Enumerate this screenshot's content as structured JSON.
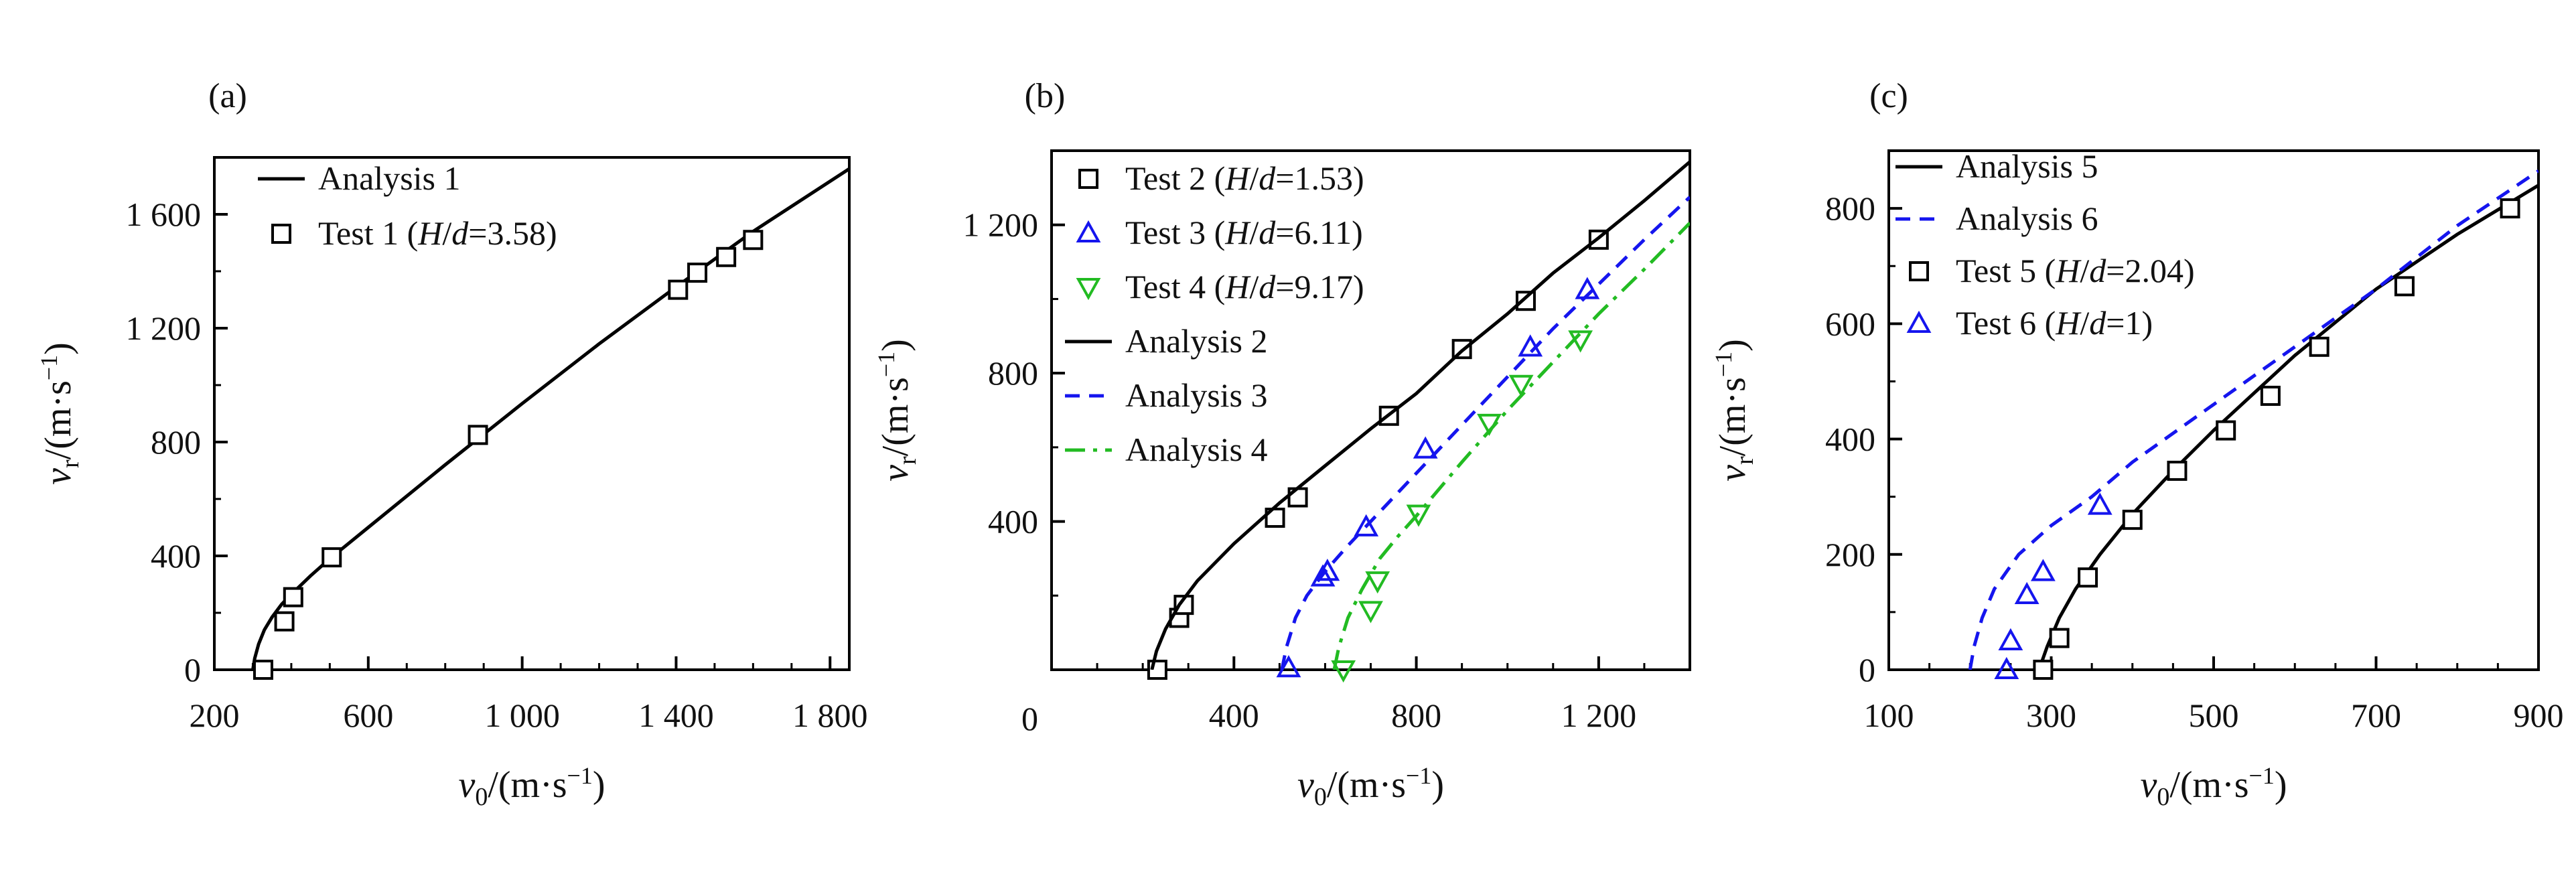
{
  "chart_data": [
    {
      "panel_label": "(a)",
      "type": "line",
      "xlabel": "v0/(m·s⁻¹)",
      "ylabel": "vr/(m·s⁻¹)",
      "xlim": [
        200,
        1850
      ],
      "ylim": [
        0,
        1800
      ],
      "xticks": [
        200,
        600,
        1000,
        1400,
        1800
      ],
      "xtick_labels": [
        "200",
        "600",
        "1 000",
        "1 400",
        "1 800"
      ],
      "yticks": [
        0,
        400,
        800,
        1200,
        1600
      ],
      "ytick_labels": [
        "0",
        "400",
        "800",
        "1 200",
        "1 600"
      ],
      "legend_position": "top-left",
      "series": [
        {
          "name": "Analysis 1",
          "kind": "curve",
          "color": "#000000",
          "dash": "solid",
          "x": [
            300,
            305,
            315,
            330,
            350,
            375,
            400,
            450,
            500,
            600,
            800,
            1000,
            1200,
            1400,
            1600,
            1850
          ],
          "y": [
            0,
            40,
            90,
            140,
            185,
            230,
            265,
            330,
            390,
            500,
            720,
            935,
            1145,
            1345,
            1540,
            1760
          ]
        },
        {
          "name": "Test 1 (H/d=3.58)",
          "legend_parts": [
            "Test 1 (",
            "H",
            "/",
            "d",
            "=3.58)"
          ],
          "kind": "markers",
          "marker": "square",
          "color": "#000000",
          "x": [
            327,
            382,
            405,
            505,
            885,
            1405,
            1455,
            1530,
            1600
          ],
          "y": [
            0,
            170,
            255,
            395,
            825,
            1335,
            1395,
            1450,
            1510
          ]
        }
      ]
    },
    {
      "panel_label": "(b)",
      "type": "line",
      "xlabel": "v0/(m·s⁻¹)",
      "ylabel": "vr/(m·s⁻¹)",
      "xlim": [
        0,
        1400
      ],
      "ylim": [
        0,
        1400
      ],
      "xticks": [
        400,
        800,
        1200
      ],
      "xtick_labels": [
        "400",
        "800",
        "1 200"
      ],
      "yticks": [
        400,
        800,
        1200
      ],
      "ytick_labels": [
        "400",
        "800",
        "1 200"
      ],
      "origin_label": "0",
      "legend_position": "top-left",
      "series": [
        {
          "name": "Test 2 (H/d=1.53)",
          "legend_parts": [
            "Test 2 (",
            "H",
            "/",
            "d",
            "=1.53)"
          ],
          "kind": "markers",
          "marker": "square",
          "color": "#000000",
          "x": [
            232,
            280,
            290,
            490,
            540,
            740,
            900,
            1040,
            1200
          ],
          "y": [
            0,
            140,
            175,
            410,
            465,
            685,
            865,
            995,
            1160
          ]
        },
        {
          "name": "Test 3 (H/d=6.11)",
          "legend_parts": [
            "Test 3 (",
            "H",
            "/",
            "d",
            "=6.11)"
          ],
          "kind": "markers",
          "marker": "triangle-up",
          "color": "#1515ee",
          "x": [
            520,
            595,
            605,
            690,
            820,
            1050,
            1175
          ],
          "y": [
            5,
            250,
            265,
            385,
            595,
            870,
            1025
          ]
        },
        {
          "name": "Test 4 (H/d=9.17)",
          "legend_parts": [
            "Test 4 (",
            "H",
            "/",
            "d",
            "=9.17)"
          ],
          "kind": "markers",
          "marker": "triangle-down",
          "color": "#22bb22",
          "x": [
            640,
            700,
            715,
            805,
            960,
            1030,
            1160
          ],
          "y": [
            0,
            160,
            240,
            420,
            665,
            770,
            890
          ]
        },
        {
          "name": "Analysis 2",
          "kind": "curve",
          "color": "#000000",
          "dash": "solid",
          "x": [
            220,
            230,
            250,
            280,
            320,
            400,
            500,
            600,
            700,
            800,
            900,
            1000,
            1100,
            1200,
            1300,
            1400
          ],
          "y": [
            0,
            50,
            110,
            175,
            240,
            340,
            450,
            550,
            650,
            745,
            860,
            960,
            1070,
            1165,
            1265,
            1370
          ]
        },
        {
          "name": "Analysis 3",
          "kind": "curve",
          "color": "#1515ee",
          "dash": "dashed",
          "x": [
            505,
            515,
            535,
            560,
            600,
            650,
            700,
            800,
            900,
            1000,
            1100,
            1200,
            1300,
            1400
          ],
          "y": [
            0,
            60,
            140,
            200,
            265,
            335,
            400,
            530,
            660,
            790,
            920,
            1040,
            1160,
            1275
          ]
        },
        {
          "name": "Analysis 4",
          "kind": "curve",
          "color": "#22bb22",
          "dash": "dashdot",
          "x": [
            620,
            630,
            650,
            680,
            720,
            760,
            800,
            900,
            1000,
            1100,
            1200,
            1300,
            1400
          ],
          "y": [
            0,
            60,
            140,
            215,
            300,
            360,
            415,
            560,
            700,
            830,
            960,
            1080,
            1205
          ]
        }
      ]
    },
    {
      "panel_label": "(c)",
      "type": "line",
      "xlabel": "v0/(m·s⁻¹)",
      "ylabel": "vr/(m·s⁻¹)",
      "xlim": [
        100,
        900
      ],
      "ylim": [
        0,
        900
      ],
      "xticks": [
        100,
        300,
        500,
        700,
        900
      ],
      "xtick_labels": [
        "100",
        "300",
        "500",
        "700",
        "900"
      ],
      "yticks": [
        0,
        200,
        400,
        600,
        800
      ],
      "ytick_labels": [
        "0",
        "200",
        "400",
        "600",
        "800"
      ],
      "legend_position": "top-left",
      "series": [
        {
          "name": "Analysis 5",
          "kind": "curve",
          "color": "#000000",
          "dash": "solid",
          "x": [
            285,
            295,
            310,
            330,
            360,
            400,
            450,
            500,
            600,
            700,
            800,
            900
          ],
          "y": [
            0,
            40,
            90,
            140,
            200,
            270,
            345,
            415,
            545,
            660,
            755,
            840
          ]
        },
        {
          "name": "Analysis 6",
          "kind": "curve",
          "color": "#1515ee",
          "dash": "dashed",
          "x": [
            200,
            205,
            215,
            230,
            260,
            300,
            350,
            400,
            500,
            600,
            700,
            800,
            900
          ],
          "y": [
            0,
            40,
            90,
            140,
            200,
            250,
            300,
            360,
            460,
            560,
            660,
            770,
            865
          ]
        },
        {
          "name": "Test 5 (H/d=2.04)",
          "legend_parts": [
            "Test 5 (",
            "H",
            "/",
            "d",
            "=2.04)"
          ],
          "kind": "markers",
          "marker": "square",
          "color": "#000000",
          "x": [
            290,
            310,
            345,
            400,
            455,
            515,
            570,
            630,
            735,
            865
          ],
          "y": [
            0,
            55,
            160,
            260,
            345,
            415,
            475,
            560,
            665,
            800
          ]
        },
        {
          "name": "Test 6 (H/d=1)",
          "legend_parts": [
            "Test 6 (",
            "H",
            "/",
            "d",
            "=1)"
          ],
          "kind": "markers",
          "marker": "triangle-up",
          "color": "#1515ee",
          "x": [
            245,
            250,
            270,
            290,
            360
          ],
          "y": [
            0,
            50,
            130,
            170,
            285
          ]
        }
      ]
    }
  ]
}
